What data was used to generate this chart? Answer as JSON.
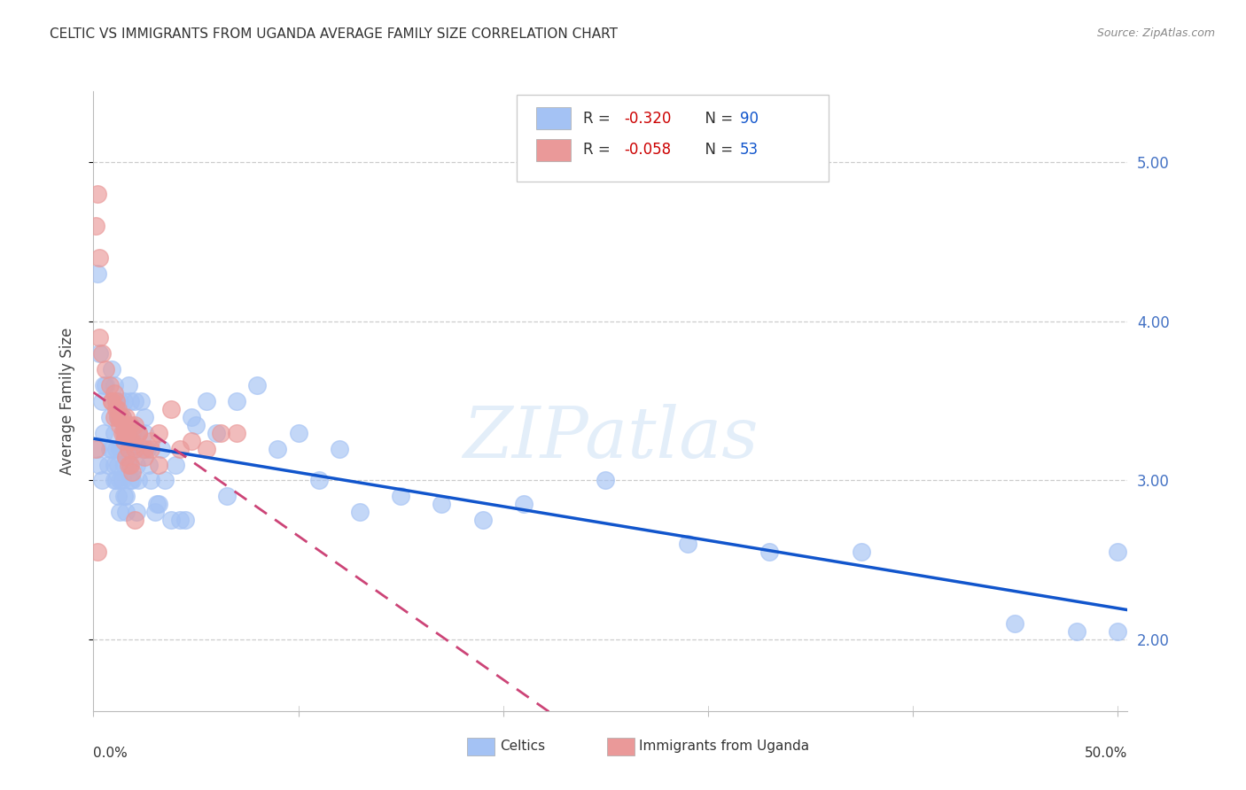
{
  "title": "CELTIC VS IMMIGRANTS FROM UGANDA AVERAGE FAMILY SIZE CORRELATION CHART",
  "source": "Source: ZipAtlas.com",
  "ylabel": "Average Family Size",
  "watermark": "ZIPatlas",
  "legend": {
    "celtic_R": "-0.320",
    "celtic_N": "90",
    "uganda_R": "-0.058",
    "uganda_N": "53"
  },
  "right_yticks": [
    2.0,
    3.0,
    4.0,
    5.0
  ],
  "ylim": [
    1.55,
    5.45
  ],
  "xlim": [
    0.0,
    0.505
  ],
  "celtic_color": "#a4c2f4",
  "uganda_color": "#ea9999",
  "celtic_line_color": "#1155cc",
  "uganda_line_color": "#cc4477",
  "background_color": "#ffffff",
  "celtic_x": [
    0.002,
    0.003,
    0.004,
    0.005,
    0.006,
    0.007,
    0.008,
    0.008,
    0.009,
    0.009,
    0.01,
    0.01,
    0.01,
    0.01,
    0.011,
    0.011,
    0.011,
    0.012,
    0.012,
    0.012,
    0.013,
    0.013,
    0.013,
    0.013,
    0.014,
    0.014,
    0.014,
    0.015,
    0.015,
    0.015,
    0.016,
    0.016,
    0.016,
    0.017,
    0.017,
    0.018,
    0.018,
    0.018,
    0.019,
    0.019,
    0.02,
    0.02,
    0.021,
    0.021,
    0.022,
    0.022,
    0.023,
    0.024,
    0.025,
    0.025,
    0.026,
    0.027,
    0.028,
    0.03,
    0.031,
    0.032,
    0.033,
    0.035,
    0.038,
    0.04,
    0.042,
    0.045,
    0.048,
    0.05,
    0.055,
    0.06,
    0.065,
    0.07,
    0.08,
    0.09,
    0.1,
    0.11,
    0.12,
    0.13,
    0.15,
    0.17,
    0.19,
    0.21,
    0.25,
    0.29,
    0.33,
    0.375,
    0.45,
    0.48,
    0.5,
    0.5,
    0.002,
    0.003,
    0.004,
    0.005
  ],
  "celtic_y": [
    4.3,
    3.8,
    3.5,
    3.3,
    3.6,
    3.1,
    3.4,
    3.2,
    3.7,
    3.2,
    3.3,
    3.0,
    3.6,
    3.1,
    3.0,
    3.5,
    3.2,
    2.9,
    3.4,
    3.1,
    3.0,
    2.8,
    3.5,
    3.2,
    3.0,
    3.4,
    3.2,
    2.9,
    3.5,
    3.1,
    2.9,
    3.3,
    2.8,
    3.6,
    3.2,
    3.0,
    3.5,
    3.1,
    3.3,
    3.0,
    3.5,
    3.2,
    3.1,
    2.8,
    3.0,
    3.3,
    3.5,
    3.2,
    3.3,
    3.4,
    3.2,
    3.1,
    3.0,
    2.8,
    2.85,
    2.85,
    3.2,
    3.0,
    2.75,
    3.1,
    2.75,
    2.75,
    3.4,
    3.35,
    3.5,
    3.3,
    2.9,
    3.5,
    3.6,
    3.2,
    3.3,
    3.0,
    3.2,
    2.8,
    2.9,
    2.85,
    2.75,
    2.85,
    3.0,
    2.6,
    2.55,
    2.55,
    2.1,
    2.05,
    2.05,
    2.55,
    3.2,
    3.1,
    3.0,
    3.6
  ],
  "uganda_x": [
    0.001,
    0.002,
    0.003,
    0.004,
    0.006,
    0.008,
    0.009,
    0.009,
    0.01,
    0.01,
    0.011,
    0.011,
    0.012,
    0.012,
    0.013,
    0.013,
    0.014,
    0.014,
    0.015,
    0.015,
    0.016,
    0.016,
    0.017,
    0.018,
    0.019,
    0.02,
    0.022,
    0.025,
    0.028,
    0.032,
    0.038,
    0.042,
    0.048,
    0.055,
    0.062,
    0.07,
    0.015,
    0.016,
    0.017,
    0.018,
    0.02,
    0.022,
    0.025,
    0.028,
    0.032,
    0.016,
    0.017,
    0.018,
    0.019,
    0.02,
    0.001,
    0.002,
    0.003
  ],
  "uganda_y": [
    4.6,
    4.8,
    3.9,
    3.8,
    3.7,
    3.6,
    3.5,
    3.5,
    3.4,
    3.55,
    3.45,
    3.5,
    3.4,
    3.45,
    3.4,
    3.35,
    3.3,
    3.4,
    3.3,
    3.35,
    3.3,
    3.4,
    3.35,
    3.35,
    3.25,
    3.35,
    3.3,
    3.2,
    3.25,
    3.3,
    3.45,
    3.2,
    3.25,
    3.2,
    3.3,
    3.3,
    3.25,
    3.3,
    3.2,
    3.25,
    3.2,
    3.3,
    3.15,
    3.2,
    3.1,
    3.15,
    3.1,
    3.1,
    3.05,
    2.75,
    3.2,
    2.55,
    4.4
  ]
}
